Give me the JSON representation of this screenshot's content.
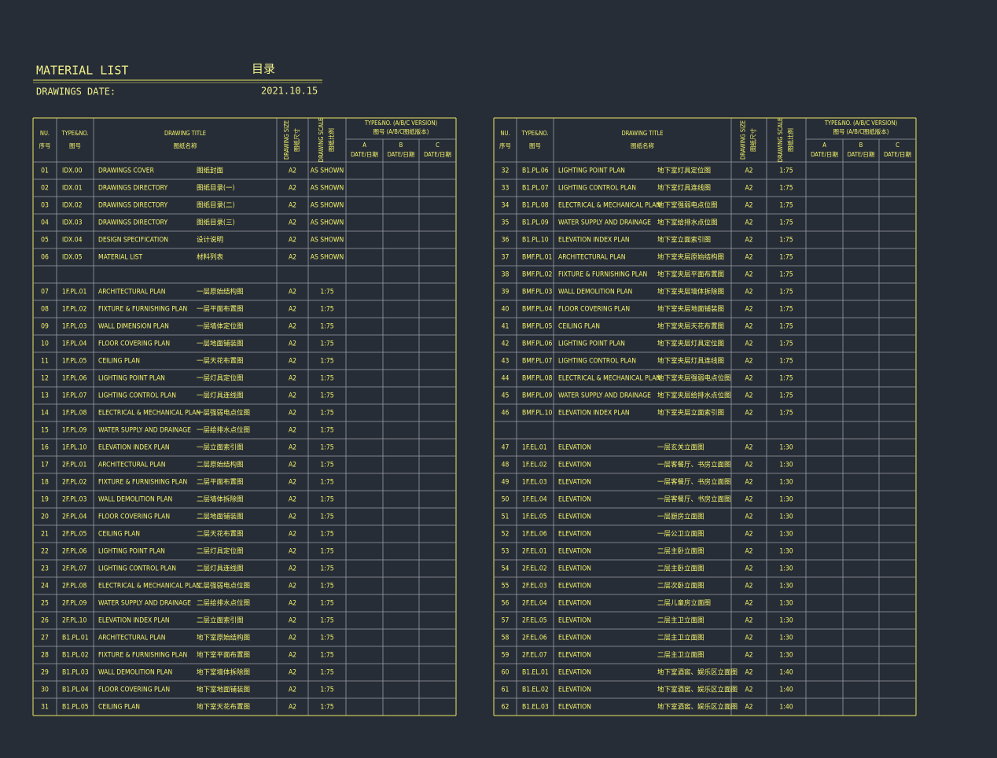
{
  "header": {
    "title": "MATERIAL LIST",
    "title_cn": "目录",
    "subtitle": "DRAWINGS  DATE:",
    "date": "2021.10.15"
  },
  "columns": {
    "no": "NU.",
    "no_cn": "序号",
    "type": "TYPE&NO.",
    "type_cn": "图号",
    "title": "DRAWING TITLE",
    "title_cn": "图纸名称",
    "size": "DRAWING SIZE",
    "size_cn": "图纸尺寸",
    "scale": "DRAWING SCALE",
    "scale_cn": "图纸比例",
    "version": "TYPE&NO. (A/B/C VERSION)",
    "version_cn": "图号 (A/B/C图纸版本)",
    "a": "A",
    "b": "B",
    "c": "C",
    "date": "DATE/日期"
  },
  "tables": [
    {
      "rows": [
        [
          "01",
          "IDX.00",
          "DRAWINGS  COVER",
          "图纸封面",
          "A2",
          "AS SHOWN"
        ],
        [
          "02",
          "IDX.01",
          "DRAWINGS  DIRECTORY",
          "图纸目录(一)",
          "A2",
          "AS SHOWN"
        ],
        [
          "03",
          "IDX.02",
          "DRAWINGS  DIRECTORY",
          "图纸目录(二)",
          "A2",
          "AS SHOWN"
        ],
        [
          "04",
          "IDX.03",
          "DRAWINGS  DIRECTORY",
          "图纸目录(三)",
          "A2",
          "AS SHOWN"
        ],
        [
          "05",
          "IDX.04",
          "DESIGN SPECIFICATION",
          "设计说明",
          "A2",
          "AS SHOWN"
        ],
        [
          "06",
          "IDX.05",
          "MATERIAL LIST",
          "材料列表",
          "A2",
          "AS SHOWN"
        ],
        null,
        [
          "07",
          "1F.PL.01",
          "ARCHITECTURAL PLAN",
          "一层原始结构图",
          "A2",
          "1:75"
        ],
        [
          "08",
          "1F.PL.02",
          "FIXTURE & FURNISHING  PLAN",
          "一层平面布置图",
          "A2",
          "1:75"
        ],
        [
          "09",
          "1F.PL.03",
          "WALL  DIMENSION  PLAN",
          "一层墙体定位图",
          "A2",
          "1:75"
        ],
        [
          "10",
          "1F.PL.04",
          "FLOOR  COVERING  PLAN",
          "一层地面铺装图",
          "A2",
          "1:75"
        ],
        [
          "11",
          "1F.PL.05",
          "CEILING  PLAN",
          "一层天花布置图",
          "A2",
          "1:75"
        ],
        [
          "12",
          "1F.PL.06",
          "LIGHTING   POINT  PLAN",
          "一层灯具定位图",
          "A2",
          "1:75"
        ],
        [
          "13",
          "1F.PL.07",
          "LIGHTING   CONTROL  PLAN",
          "一层灯具连线图",
          "A2",
          "1:75"
        ],
        [
          "14",
          "1F.PL.08",
          "ELECTRICAL & MECHANICAL PLAN",
          "一层强弱电点位图",
          "A2",
          "1:75"
        ],
        [
          "15",
          "1F.PL.09",
          "WATER SUPPLY AND DRAINAGE",
          "一层给排水点位图",
          "A2",
          "1:75"
        ],
        [
          "16",
          "1F.PL.10",
          "ELEVATION  INDEX  PLAN",
          "一层立面索引图",
          "A2",
          "1:75"
        ],
        [
          "17",
          "2F.PL.01",
          "ARCHITECTURAL PLAN",
          "二层原始结构图",
          "A2",
          "1:75"
        ],
        [
          "18",
          "2F.PL.02",
          "FIXTURE & FURNISHING  PLAN",
          "二层平面布置图",
          "A2",
          "1:75"
        ],
        [
          "19",
          "2F.PL.03",
          "WALL DEMOLITION PLAN",
          "二层墙体拆除图",
          "A2",
          "1:75"
        ],
        [
          "20",
          "2F.PL.04",
          "FLOOR  COVERING  PLAN",
          "二层地面铺装图",
          "A2",
          "1:75"
        ],
        [
          "21",
          "2F.PL.05",
          "CEILING  PLAN",
          "二层天花布置图",
          "A2",
          "1:75"
        ],
        [
          "22",
          "2F.PL.06",
          "LIGHTING   POINT  PLAN",
          "二层灯具定位图",
          "A2",
          "1:75"
        ],
        [
          "23",
          "2F.PL.07",
          "LIGHTING   CONTROL  PLAN",
          "二层灯具连线图",
          "A2",
          "1:75"
        ],
        [
          "24",
          "2F.PL.08",
          "ELECTRICAL & MECHANICAL PLAN",
          "二层强弱电点位图",
          "A2",
          "1:75"
        ],
        [
          "25",
          "2F.PL.09",
          "WATER SUPPLY AND DRAINAGE",
          "二层给排水点位图",
          "A2",
          "1:75"
        ],
        [
          "26",
          "2F.PL.10",
          "ELEVATION  INDEX  PLAN",
          "二层立面索引图",
          "A2",
          "1:75"
        ],
        [
          "27",
          "B1.PL.01",
          "ARCHITECTURAL PLAN",
          "地下室原始结构图",
          "A2",
          "1:75"
        ],
        [
          "28",
          "B1.PL.02",
          "FIXTURE & FURNISHING  PLAN",
          "地下室平面布置图",
          "A2",
          "1:75"
        ],
        [
          "29",
          "B1.PL.03",
          "WALL DEMOLITION PLAN",
          "地下室墙体拆除图",
          "A2",
          "1:75"
        ],
        [
          "30",
          "B1.PL.04",
          "FLOOR  COVERING  PLAN",
          "地下室地面铺装图",
          "A2",
          "1:75"
        ],
        [
          "31",
          "B1.PL.05",
          "CEILING  PLAN",
          "地下室天花布置图",
          "A2",
          "1:75"
        ]
      ]
    },
    {
      "rows": [
        [
          "32",
          "B1.PL.06",
          "LIGHTING   POINT  PLAN",
          "地下室灯具定位图",
          "A2",
          "1:75"
        ],
        [
          "33",
          "B1.PL.07",
          "LIGHTING   CONTROL  PLAN",
          "地下室灯具连线图",
          "A2",
          "1:75"
        ],
        [
          "34",
          "B1.PL.08",
          "ELECTRICAL & MECHANICAL PLAN",
          "地下室强弱电点位图",
          "A2",
          "1:75"
        ],
        [
          "35",
          "B1.PL.09",
          "WATER SUPPLY AND DRAINAGE",
          "地下室给排水点位图",
          "A2",
          "1:75"
        ],
        [
          "36",
          "B1.PL.10",
          "ELEVATION  INDEX  PLAN",
          "地下室立面索引图",
          "A2",
          "1:75"
        ],
        [
          "37",
          "BMF.PL.01",
          "ARCHITECTURAL PLAN",
          "地下室夹层原始结构图",
          "A2",
          "1:75"
        ],
        [
          "38",
          "BMF.PL.02",
          "FIXTURE & FURNISHING  PLAN",
          "地下室夹层平面布置图",
          "A2",
          "1:75"
        ],
        [
          "39",
          "BMF.PL.03",
          "WALL DEMOLITION PLAN",
          "地下室夹层墙体拆除图",
          "A2",
          "1:75"
        ],
        [
          "40",
          "BMF.PL.04",
          "FLOOR  COVERING  PLAN",
          "地下室夹层地面铺装图",
          "A2",
          "1:75"
        ],
        [
          "41",
          "BMF.PL.05",
          "CEILING  PLAN",
          "地下室夹层天花布置图",
          "A2",
          "1:75"
        ],
        [
          "42",
          "BMF.PL.06",
          "LIGHTING   POINT  PLAN",
          "地下室夹层灯具定位图",
          "A2",
          "1:75"
        ],
        [
          "43",
          "BMF.PL.07",
          "LIGHTING   CONTROL  PLAN",
          "地下室夹层灯具连线图",
          "A2",
          "1:75"
        ],
        [
          "44",
          "BMF.PL.08",
          "ELECTRICAL & MECHANICAL PLAN",
          "地下室夹层强弱电点位图",
          "A2",
          "1:75"
        ],
        [
          "45",
          "BMF.PL.09",
          "WATER SUPPLY AND DRAINAGE",
          "地下室夹层给排水点位图",
          "A2",
          "1:75"
        ],
        [
          "46",
          "BMF.PL.10",
          "ELEVATION  INDEX  PLAN",
          "地下室夹层立面索引图",
          "A2",
          "1:75"
        ],
        null,
        [
          "47",
          "1F.EL.01",
          "ELEVATION",
          "一层玄关立面图",
          "A2",
          "1:30"
        ],
        [
          "48",
          "1F.EL.02",
          "ELEVATION",
          "一层客餐厅、书房立面图",
          "A2",
          "1:30"
        ],
        [
          "49",
          "1F.EL.03",
          "ELEVATION",
          "一层客餐厅、书房立面图",
          "A2",
          "1:30"
        ],
        [
          "50",
          "1F.EL.04",
          "ELEVATION",
          "一层客餐厅、书房立面图",
          "A2",
          "1:30"
        ],
        [
          "51",
          "1F.EL.05",
          "ELEVATION",
          "一层厨房立面图",
          "A2",
          "1:30"
        ],
        [
          "52",
          "1F.EL.06",
          "ELEVATION",
          "一层公卫立面图",
          "A2",
          "1:30"
        ],
        [
          "53",
          "2F.EL.01",
          "ELEVATION",
          "二层主卧立面图",
          "A2",
          "1:30"
        ],
        [
          "54",
          "2F.EL.02",
          "ELEVATION",
          "二层主卧立面图",
          "A2",
          "1:30"
        ],
        [
          "55",
          "2F.EL.03",
          "ELEVATION",
          "二层次卧立面图",
          "A2",
          "1:30"
        ],
        [
          "56",
          "2F.EL.04",
          "ELEVATION",
          "二层儿童房立面图",
          "A2",
          "1:30"
        ],
        [
          "57",
          "2F.EL.05",
          "ELEVATION",
          "二层主卫立面图",
          "A2",
          "1:30"
        ],
        [
          "58",
          "2F.EL.06",
          "ELEVATION",
          "二层主卫立面图",
          "A2",
          "1:30"
        ],
        [
          "59",
          "2F.EL.07",
          "ELEVATION",
          "二层主卫立面图",
          "A2",
          "1:30"
        ],
        [
          "60",
          "B1.EL.01",
          "ELEVATION",
          "地下室酒窖、娱乐区立面图",
          "A2",
          "1:40"
        ],
        [
          "61",
          "B1.EL.02",
          "ELEVATION",
          "地下室酒窖、娱乐区立面图",
          "A2",
          "1:40"
        ],
        [
          "62",
          "B1.EL.03",
          "ELEVATION",
          "地下室酒窖、娱乐区立面图",
          "A2",
          "1:40"
        ]
      ]
    }
  ]
}
